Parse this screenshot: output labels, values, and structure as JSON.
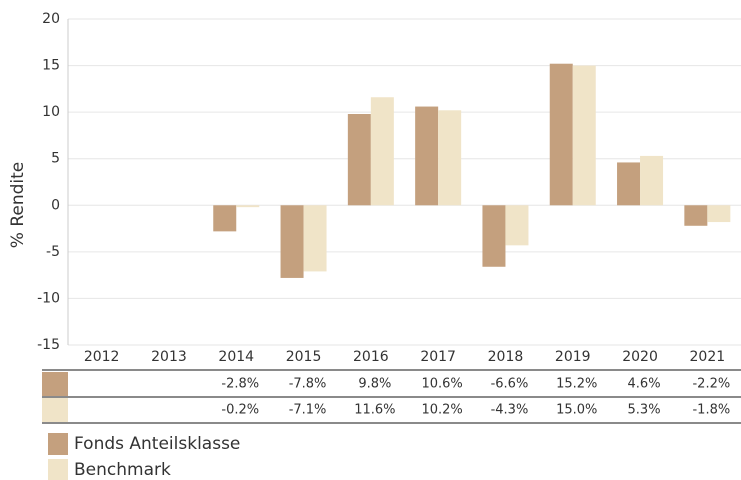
{
  "chart_data": {
    "type": "bar",
    "y_label": "% Rendite",
    "categories": [
      "2012",
      "2013",
      "2014",
      "2015",
      "2016",
      "2017",
      "2018",
      "2019",
      "2020",
      "2021"
    ],
    "series": [
      {
        "name": "Fonds Anteilsklasse",
        "color": "#c4a07e",
        "values": [
          null,
          null,
          -2.8,
          -7.8,
          9.8,
          10.6,
          -6.6,
          15.2,
          4.6,
          -2.2
        ],
        "value_labels": [
          null,
          null,
          "-2.8%",
          "-7.8%",
          "9.8%",
          "10.6%",
          "-6.6%",
          "15.2%",
          "4.6%",
          "-2.2%"
        ]
      },
      {
        "name": "Benchmark",
        "color": "#f0e4c8",
        "values": [
          null,
          null,
          -0.2,
          -7.1,
          11.6,
          10.2,
          -4.3,
          15.0,
          5.3,
          -1.8
        ],
        "value_labels": [
          null,
          null,
          "-0.2%",
          "-7.1%",
          "11.6%",
          "10.2%",
          "-4.3%",
          "15.0%",
          "5.3%",
          "-1.8%"
        ]
      }
    ],
    "ylim": [
      -15,
      20
    ],
    "yticks": [
      -15,
      -10,
      -5,
      0,
      5,
      10,
      15,
      20
    ],
    "grid": true
  }
}
